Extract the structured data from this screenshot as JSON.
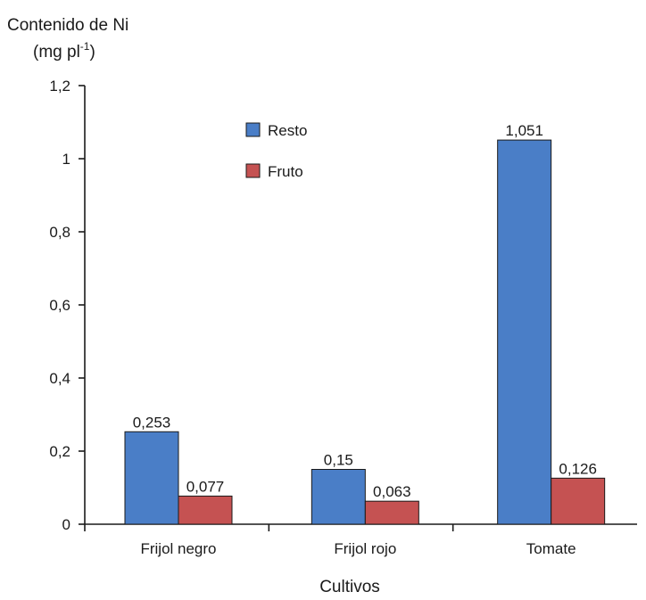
{
  "chart_data": {
    "type": "bar",
    "title": "",
    "ylabel_line1": "Contenido de Ni",
    "ylabel_line2_prefix": "(mg pl",
    "ylabel_line2_sup": "-1",
    "ylabel_line2_suffix": ")",
    "xlabel": "Cultivos",
    "categories": [
      "Frijol negro",
      "Frijol rojo",
      "Tomate"
    ],
    "ylim": [
      0,
      1.2
    ],
    "yticks": [
      0,
      0.2,
      0.4,
      0.6,
      0.8,
      1,
      1.2
    ],
    "ytick_labels": [
      "0",
      "0,2",
      "0,4",
      "0,6",
      "0,8",
      "1",
      "1,2"
    ],
    "legend_position": "top-center",
    "grid": false,
    "series": [
      {
        "name": "Resto",
        "color": "#4a7ec7",
        "values": [
          0.253,
          0.15,
          1.051
        ],
        "labels": [
          "0,253",
          "0,15",
          "1,051"
        ]
      },
      {
        "name": "Fruto",
        "color": "#c55252",
        "values": [
          0.077,
          0.063,
          0.126
        ],
        "labels": [
          "0,077",
          "0,063",
          "0,126"
        ]
      }
    ]
  }
}
